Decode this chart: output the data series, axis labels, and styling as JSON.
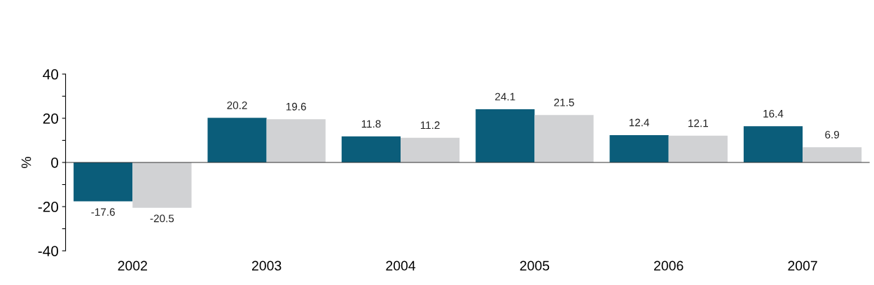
{
  "chart_data": {
    "type": "bar",
    "ylabel": "%",
    "categories": [
      "2002",
      "2003",
      "2004",
      "2005",
      "2006",
      "2007"
    ],
    "series": [
      {
        "color": "#0b5d7a",
        "values": [
          -17.6,
          20.2,
          11.8,
          24.1,
          12.4,
          16.4
        ]
      },
      {
        "color": "#d1d2d4",
        "values": [
          -20.5,
          19.6,
          11.2,
          21.5,
          12.1,
          6.9
        ]
      }
    ],
    "ylim": [
      -40,
      40
    ],
    "yticks": [
      -40,
      {
        "value": -30,
        "label": null
      },
      -20,
      {
        "value": -10,
        "label": null
      },
      0,
      {
        "value": 10,
        "label": null
      },
      20,
      {
        "value": 30,
        "label": null
      },
      40
    ],
    "data_labels": true
  }
}
